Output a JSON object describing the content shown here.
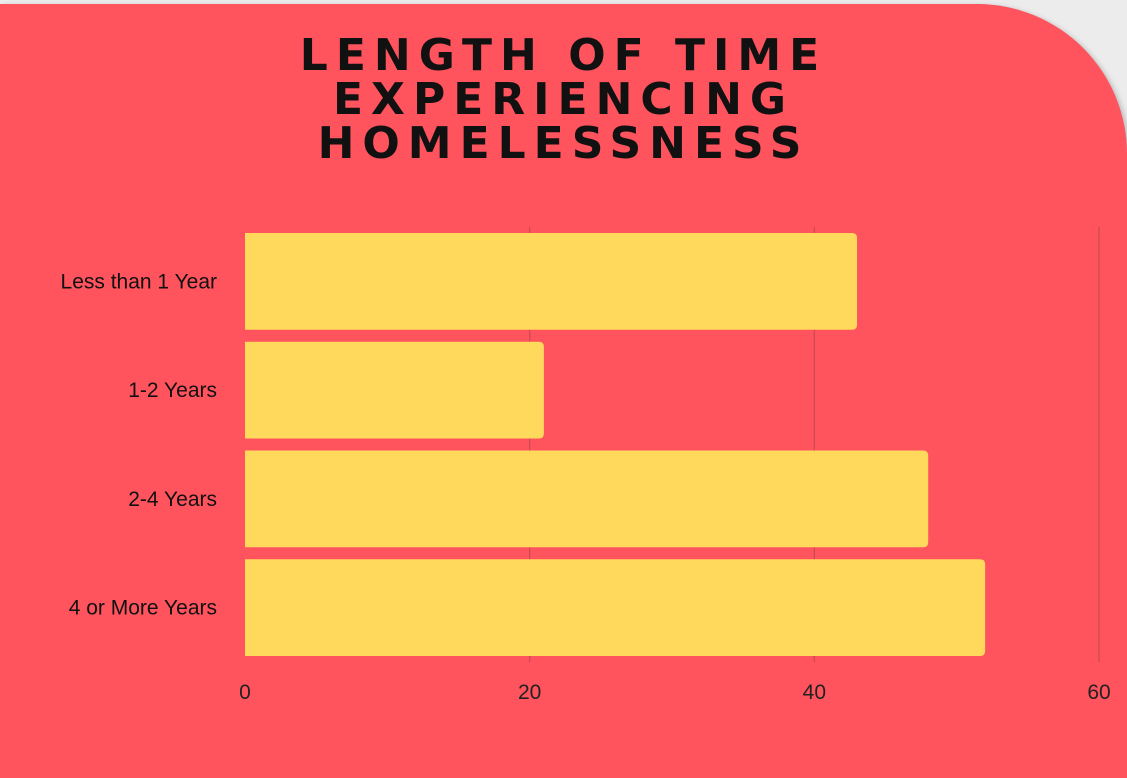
{
  "chart_data": {
    "type": "bar",
    "orientation": "horizontal",
    "title_lines": [
      "LENGTH OF TIME",
      "EXPERIENCING",
      "HOMELESSNESS"
    ],
    "categories": [
      "Less than 1 Year",
      "1-2 Years",
      "2-4 Years",
      "4 or More Years"
    ],
    "values": [
      43,
      21,
      48,
      52
    ],
    "xlim": [
      0,
      60
    ],
    "xticks": [
      "0",
      "20",
      "40",
      "60"
    ],
    "grid": true,
    "legend": "none",
    "colors": {
      "background": "#ff535e",
      "bar": "#ffd95c",
      "grid": "#c94a52",
      "title": "#111111"
    }
  }
}
